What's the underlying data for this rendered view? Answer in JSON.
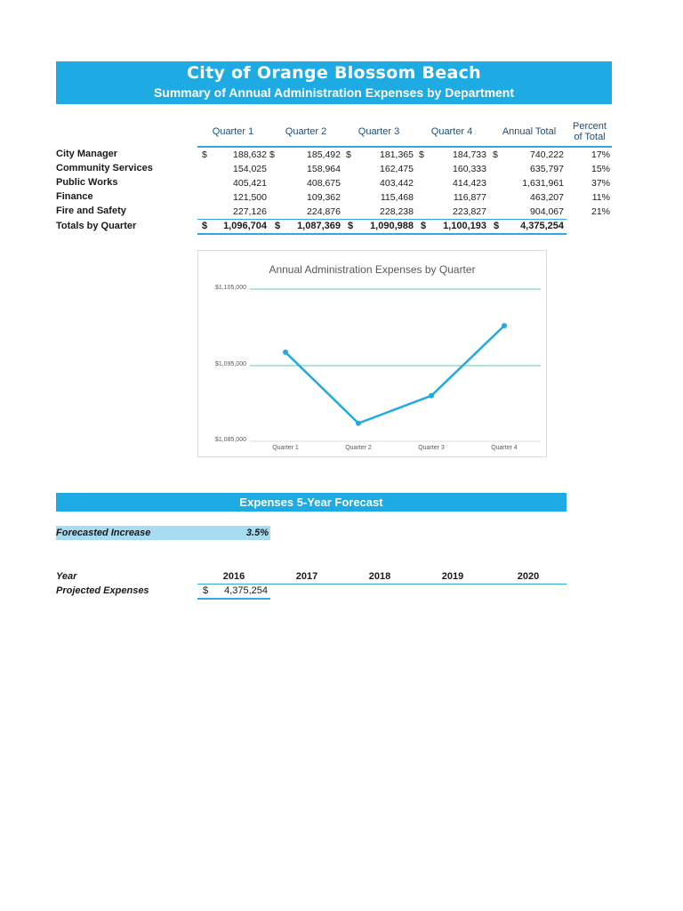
{
  "header": {
    "title": "City of Orange Blossom Beach",
    "subtitle": "Summary of Annual Administration Expenses by Department"
  },
  "table": {
    "columns": [
      "Quarter 1",
      "Quarter 2",
      "Quarter 3",
      "Quarter 4",
      "Annual Total"
    ],
    "percent_header_line1": "Percent",
    "percent_header_line2": "of Total",
    "currency_symbol": "$",
    "rows": [
      {
        "label": "City Manager",
        "q1": "188,632",
        "q2": "185,492",
        "q3": "181,365",
        "q4": "184,733",
        "total": "740,222",
        "pct": "17%"
      },
      {
        "label": "Community Services",
        "q1": "154,025",
        "q2": "158,964",
        "q3": "162,475",
        "q4": "160,333",
        "total": "635,797",
        "pct": "15%"
      },
      {
        "label": "Public Works",
        "q1": "405,421",
        "q2": "408,675",
        "q3": "403,442",
        "q4": "414,423",
        "total": "1,631,961",
        "pct": "37%"
      },
      {
        "label": "Finance",
        "q1": "121,500",
        "q2": "109,362",
        "q3": "115,468",
        "q4": "116,877",
        "total": "463,207",
        "pct": "11%"
      },
      {
        "label": "Fire and Safety",
        "q1": "227,126",
        "q2": "224,876",
        "q3": "228,238",
        "q4": "223,827",
        "total": "904,067",
        "pct": "21%"
      }
    ],
    "totals": {
      "label": "Totals by Quarter",
      "q1": "1,096,704",
      "q2": "1,087,369",
      "q3": "1,090,988",
      "q4": "1,100,193",
      "total": "4,375,254"
    }
  },
  "chart_data": {
    "type": "line",
    "title": "Annual Administration Expenses by Quarter",
    "categories": [
      "Quarter 1",
      "Quarter 2",
      "Quarter 3",
      "Quarter 4"
    ],
    "values": [
      1096704,
      1087369,
      1090988,
      1100193
    ],
    "y_tick_labels": [
      "$1,105,000",
      "$1,095,000",
      "$1,085,000"
    ],
    "ylim": [
      1085000,
      1105000
    ],
    "xlabel": "",
    "ylabel": "",
    "grid": true,
    "legend": "none",
    "line_color": "#1eaae2",
    "grid_color": "#5cc8a8"
  },
  "forecast": {
    "title": "Expenses 5-Year Forecast",
    "increase_label": "Forecasted Increase",
    "increase_value": "3.5%",
    "year_label": "Year",
    "years": [
      "2016",
      "2017",
      "2018",
      "2019",
      "2020"
    ],
    "projected_label": "Projected Expenses",
    "currency_symbol": "$",
    "projected_2016": "4,375,254"
  },
  "colors": {
    "banner": "#1eaae2",
    "header_text": "#1f4e79",
    "rule": "#31a9dd",
    "input_fill": "#a8dcf2"
  }
}
